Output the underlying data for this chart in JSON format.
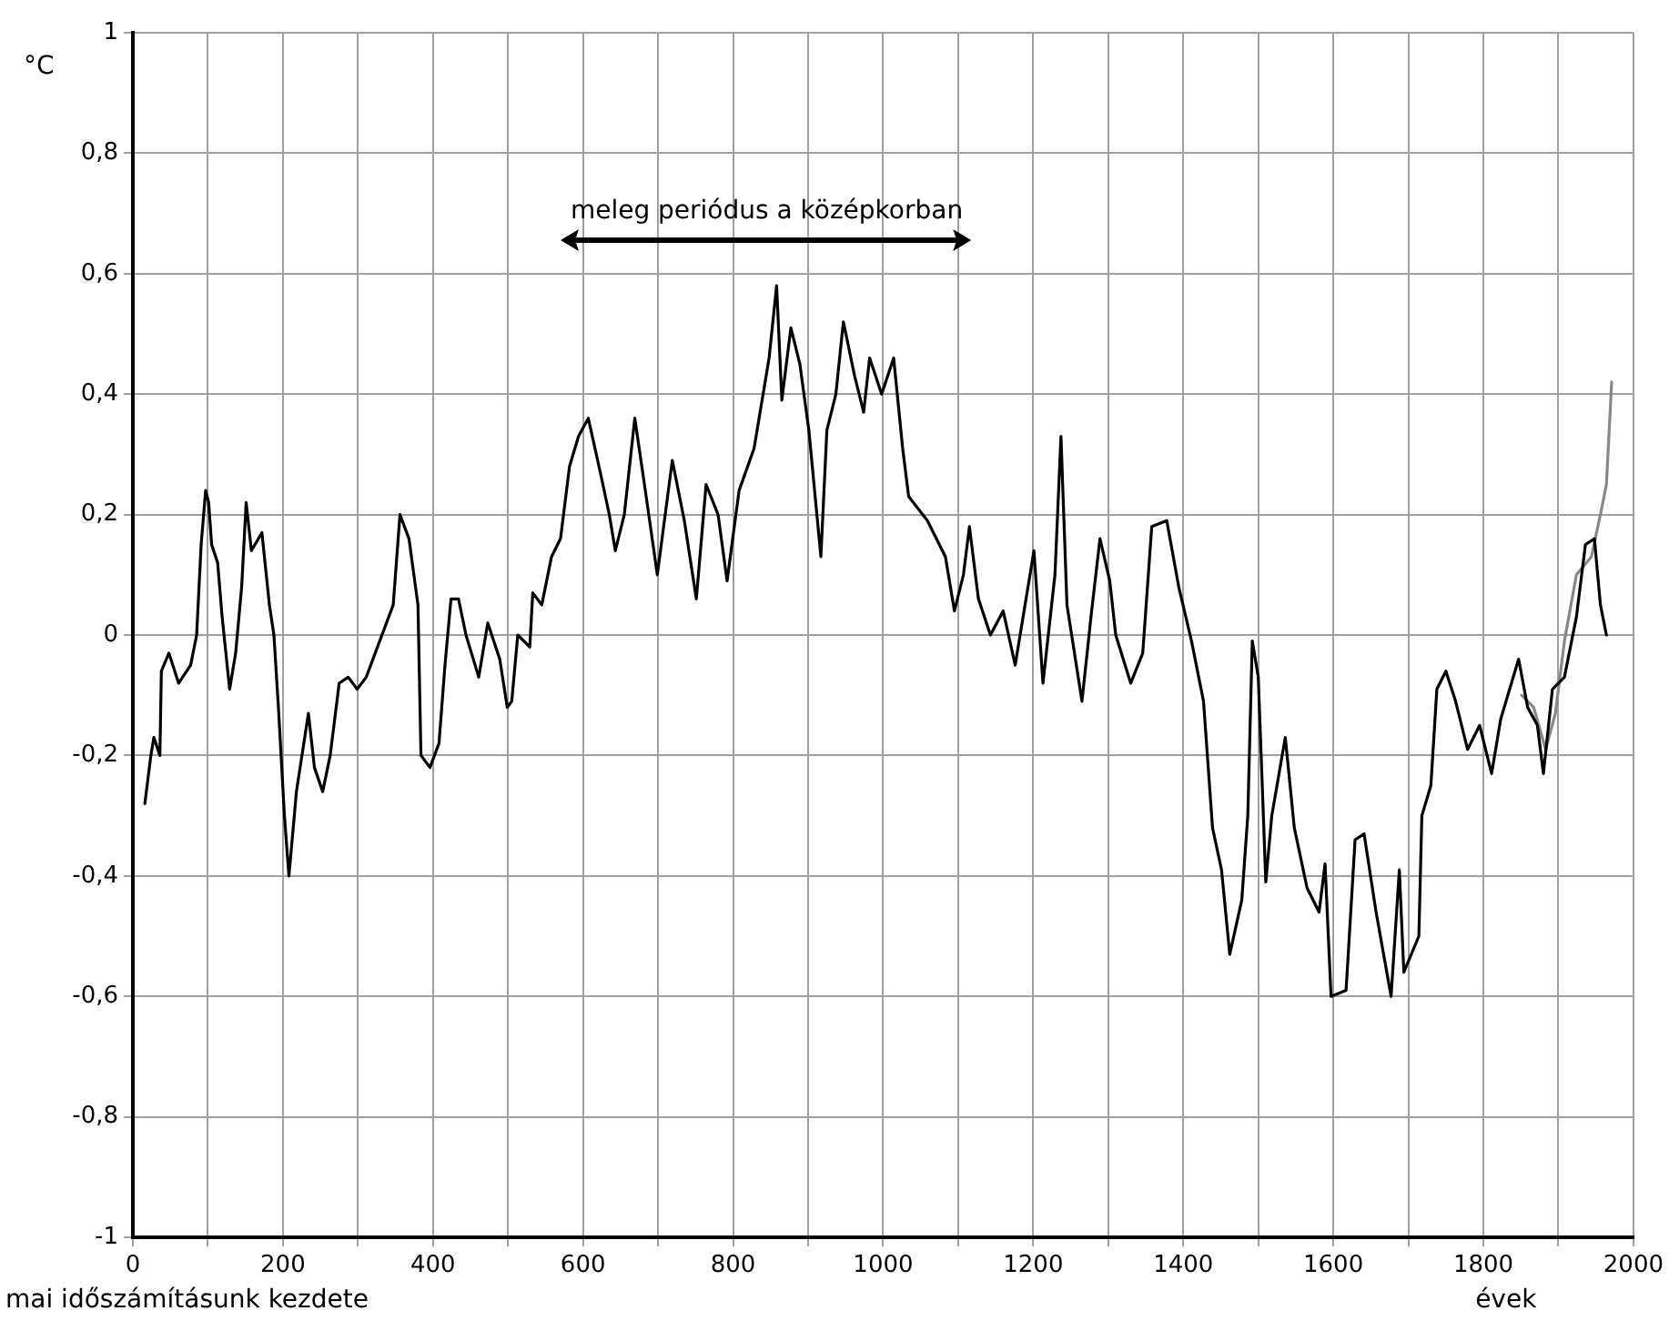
{
  "chart_data": {
    "type": "line",
    "xlabel": "évek",
    "ylabel": "°C",
    "annotations": [
      "meleg periódus a középkorban",
      "mai időszámításunk kezdete"
    ],
    "xlim": [
      0,
      2000
    ],
    "ylim": [
      -1,
      1
    ],
    "xticks": [
      0,
      {
        "value": 100,
        "label": null
      },
      200,
      {
        "value": 300,
        "label": null
      },
      400,
      {
        "value": 500,
        "label": null
      },
      600,
      {
        "value": 700,
        "label": null
      },
      800,
      {
        "value": 900,
        "label": null
      },
      1000,
      {
        "value": 1100,
        "label": null
      },
      1200,
      {
        "value": 1300,
        "label": null
      },
      1400,
      {
        "value": 1500,
        "label": null
      },
      1600,
      {
        "value": 1700,
        "label": null
      },
      1800,
      {
        "value": 1900,
        "label": null
      },
      2000
    ],
    "yticks": [
      {
        "value": -1,
        "label": "-1"
      },
      {
        "value": -0.8,
        "label": "-0,8"
      },
      {
        "value": -0.6,
        "label": "-0,6"
      },
      {
        "value": -0.4,
        "label": "-0,4"
      },
      {
        "value": -0.2,
        "label": "-0,2"
      },
      0,
      {
        "value": 0.2,
        "label": "0,2"
      },
      {
        "value": 0.4,
        "label": "0,4"
      },
      {
        "value": 0.6,
        "label": "0,6"
      },
      {
        "value": 0.8,
        "label": "0,8"
      },
      1
    ],
    "grid": true,
    "legend": false,
    "marker": "none",
    "line_style": "solid",
    "series": [
      {
        "color": "#000000",
        "x": [
          16,
          24,
          28,
          36,
          38,
          48,
          61,
          77,
          85,
          91,
          97,
          101,
          105,
          113,
          119,
          129,
          137,
          145,
          151,
          158,
          172,
          182,
          188,
          194,
          202,
          208,
          218,
          234,
          242,
          253,
          263,
          275,
          287,
          299,
          311,
          323,
          335,
          347,
          356,
          368,
          380,
          384,
          396,
          408,
          416,
          424,
          434,
          444,
          461,
          473,
          489,
          499,
          505,
          513,
          529,
          533,
          545,
          558,
          570,
          582,
          594,
          607,
          623,
          635,
          643,
          655,
          669,
          683,
          699,
          719,
          735,
          751,
          764,
          780,
          792,
          808,
          828,
          848,
          858,
          865,
          877,
          889,
          901,
          917,
          925,
          937,
          947,
          962,
          974,
          982,
          998,
          1014,
          1026,
          1034,
          1059,
          1083,
          1095,
          1107,
          1115,
          1127,
          1143,
          1160,
          1176,
          1201,
          1213,
          1229,
          1237,
          1245,
          1265,
          1277,
          1289,
          1302,
          1310,
          1330,
          1346,
          1358,
          1378,
          1394,
          1411,
          1427,
          1439,
          1451,
          1462,
          1478,
          1486,
          1492,
          1500,
          1510,
          1518,
          1536,
          1548,
          1565,
          1581,
          1589,
          1597,
          1617,
          1629,
          1641,
          1657,
          1677,
          1688,
          1694,
          1714,
          1718,
          1730,
          1738,
          1750,
          1763,
          1779,
          1795,
          1811,
          1823,
          1835,
          1847,
          1859,
          1872,
          1880,
          1892,
          1908,
          1924,
          1936,
          1948,
          1956,
          1964
        ],
        "values": [
          -0.28,
          -0.2,
          -0.17,
          -0.2,
          -0.06,
          -0.03,
          -0.08,
          -0.05,
          0.0,
          0.15,
          0.24,
          0.22,
          0.15,
          0.12,
          0.03,
          -0.09,
          -0.03,
          0.08,
          0.22,
          0.14,
          0.17,
          0.05,
          0.0,
          -0.12,
          -0.3,
          -0.4,
          -0.26,
          -0.13,
          -0.22,
          -0.26,
          -0.2,
          -0.08,
          -0.07,
          -0.09,
          -0.07,
          -0.03,
          0.01,
          0.05,
          0.2,
          0.16,
          0.05,
          -0.2,
          -0.22,
          -0.18,
          -0.05,
          0.06,
          0.06,
          0.0,
          -0.07,
          0.02,
          -0.04,
          -0.12,
          -0.11,
          0.0,
          -0.02,
          0.07,
          0.05,
          0.13,
          0.16,
          0.28,
          0.33,
          0.36,
          0.27,
          0.2,
          0.14,
          0.2,
          0.36,
          0.24,
          0.1,
          0.29,
          0.19,
          0.06,
          0.25,
          0.2,
          0.09,
          0.24,
          0.31,
          0.46,
          0.58,
          0.39,
          0.51,
          0.45,
          0.34,
          0.13,
          0.34,
          0.4,
          0.52,
          0.43,
          0.37,
          0.46,
          0.4,
          0.46,
          0.31,
          0.23,
          0.19,
          0.13,
          0.04,
          0.1,
          0.18,
          0.06,
          0.0,
          0.04,
          -0.05,
          0.14,
          -0.08,
          0.1,
          0.33,
          0.05,
          -0.11,
          0.03,
          0.16,
          0.09,
          0.0,
          -0.08,
          -0.03,
          0.18,
          0.19,
          0.08,
          -0.01,
          -0.11,
          -0.32,
          -0.39,
          -0.53,
          -0.44,
          -0.3,
          -0.01,
          -0.07,
          -0.41,
          -0.3,
          -0.17,
          -0.32,
          -0.42,
          -0.46,
          -0.38,
          -0.6,
          -0.59,
          -0.34,
          -0.33,
          -0.46,
          -0.6,
          -0.39,
          -0.56,
          -0.5,
          -0.3,
          -0.25,
          -0.09,
          -0.06,
          -0.11,
          -0.19,
          -0.15,
          -0.23,
          -0.14,
          -0.09,
          -0.04,
          -0.12,
          -0.15,
          -0.23,
          -0.09,
          -0.07,
          0.03,
          0.15,
          0.16,
          0.05,
          0.0
        ]
      },
      {
        "color": "#888888",
        "x": [
          1851,
          1867,
          1883,
          1896,
          1908,
          1924,
          1944,
          1956,
          1964,
          1971
        ],
        "values": [
          -0.1,
          -0.12,
          -0.19,
          -0.13,
          -0.01,
          0.1,
          0.13,
          0.2,
          0.25,
          0.42
        ]
      }
    ]
  }
}
